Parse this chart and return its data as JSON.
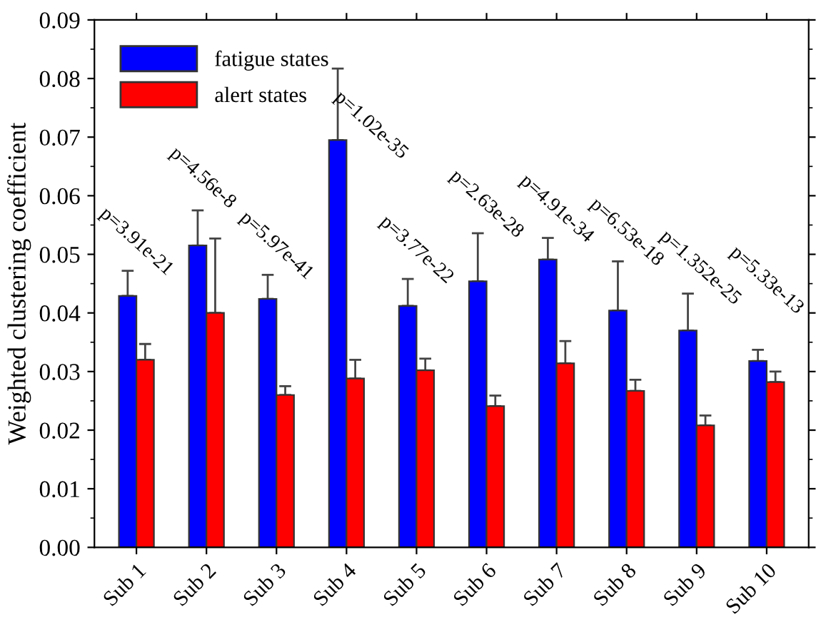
{
  "chart_data": {
    "type": "bar",
    "ylabel": "Weighted clustering coefficient",
    "categories": [
      "Sub 1",
      "Sub 2",
      "Sub 3",
      "Sub 4",
      "Sub 5",
      "Sub 6",
      "Sub 7",
      "Sub 8",
      "Sub 9",
      "Sub 10"
    ],
    "series": [
      {
        "name": "fatigue states",
        "color": "#0000ff",
        "values": [
          0.0429,
          0.0515,
          0.0424,
          0.0695,
          0.0412,
          0.0454,
          0.0491,
          0.0404,
          0.037,
          0.0318
        ],
        "errors": [
          [
            0.0429,
            0.0472
          ],
          [
            0.0515,
            0.0575
          ],
          [
            0.0424,
            0.0465
          ],
          [
            0.0695,
            0.0817
          ],
          [
            0.0412,
            0.0458
          ],
          [
            0.0454,
            0.0536
          ],
          [
            0.0491,
            0.0528
          ],
          [
            0.0404,
            0.0488
          ],
          [
            0.037,
            0.0433
          ],
          [
            0.0318,
            0.0337
          ]
        ]
      },
      {
        "name": "alert states",
        "color": "#ff0000",
        "values": [
          0.032,
          0.04,
          0.026,
          0.0288,
          0.0302,
          0.0241,
          0.0314,
          0.0267,
          0.0208,
          0.0282
        ],
        "errors": [
          [
            0.032,
            0.0347
          ],
          [
            0.04,
            0.0527
          ],
          [
            0.026,
            0.0275
          ],
          [
            0.0288,
            0.032
          ],
          [
            0.0302,
            0.0322
          ],
          [
            0.0241,
            0.0259
          ],
          [
            0.0314,
            0.0352
          ],
          [
            0.0267,
            0.0286
          ],
          [
            0.0208,
            0.0225
          ],
          [
            0.0282,
            0.03
          ]
        ]
      }
    ],
    "annotations": [
      "p=3.91e-21",
      "p=4.56e-8",
      "p=5.97e-41",
      "p=1.02e-35",
      "p=3.77e-22",
      "p=2.63e-28",
      "p=4.91e-34",
      "p=6.53e-18",
      "p=1.352e-25",
      "p=5.33e-13"
    ],
    "ylim": [
      0,
      0.09
    ],
    "yticks": [
      {
        "value": 0,
        "label": "0.00"
      },
      0.01,
      0.02,
      0.03,
      0.04,
      0.05,
      0.06,
      0.07,
      0.08,
      0.09
    ],
    "legend": "top left",
    "grid": false
  }
}
